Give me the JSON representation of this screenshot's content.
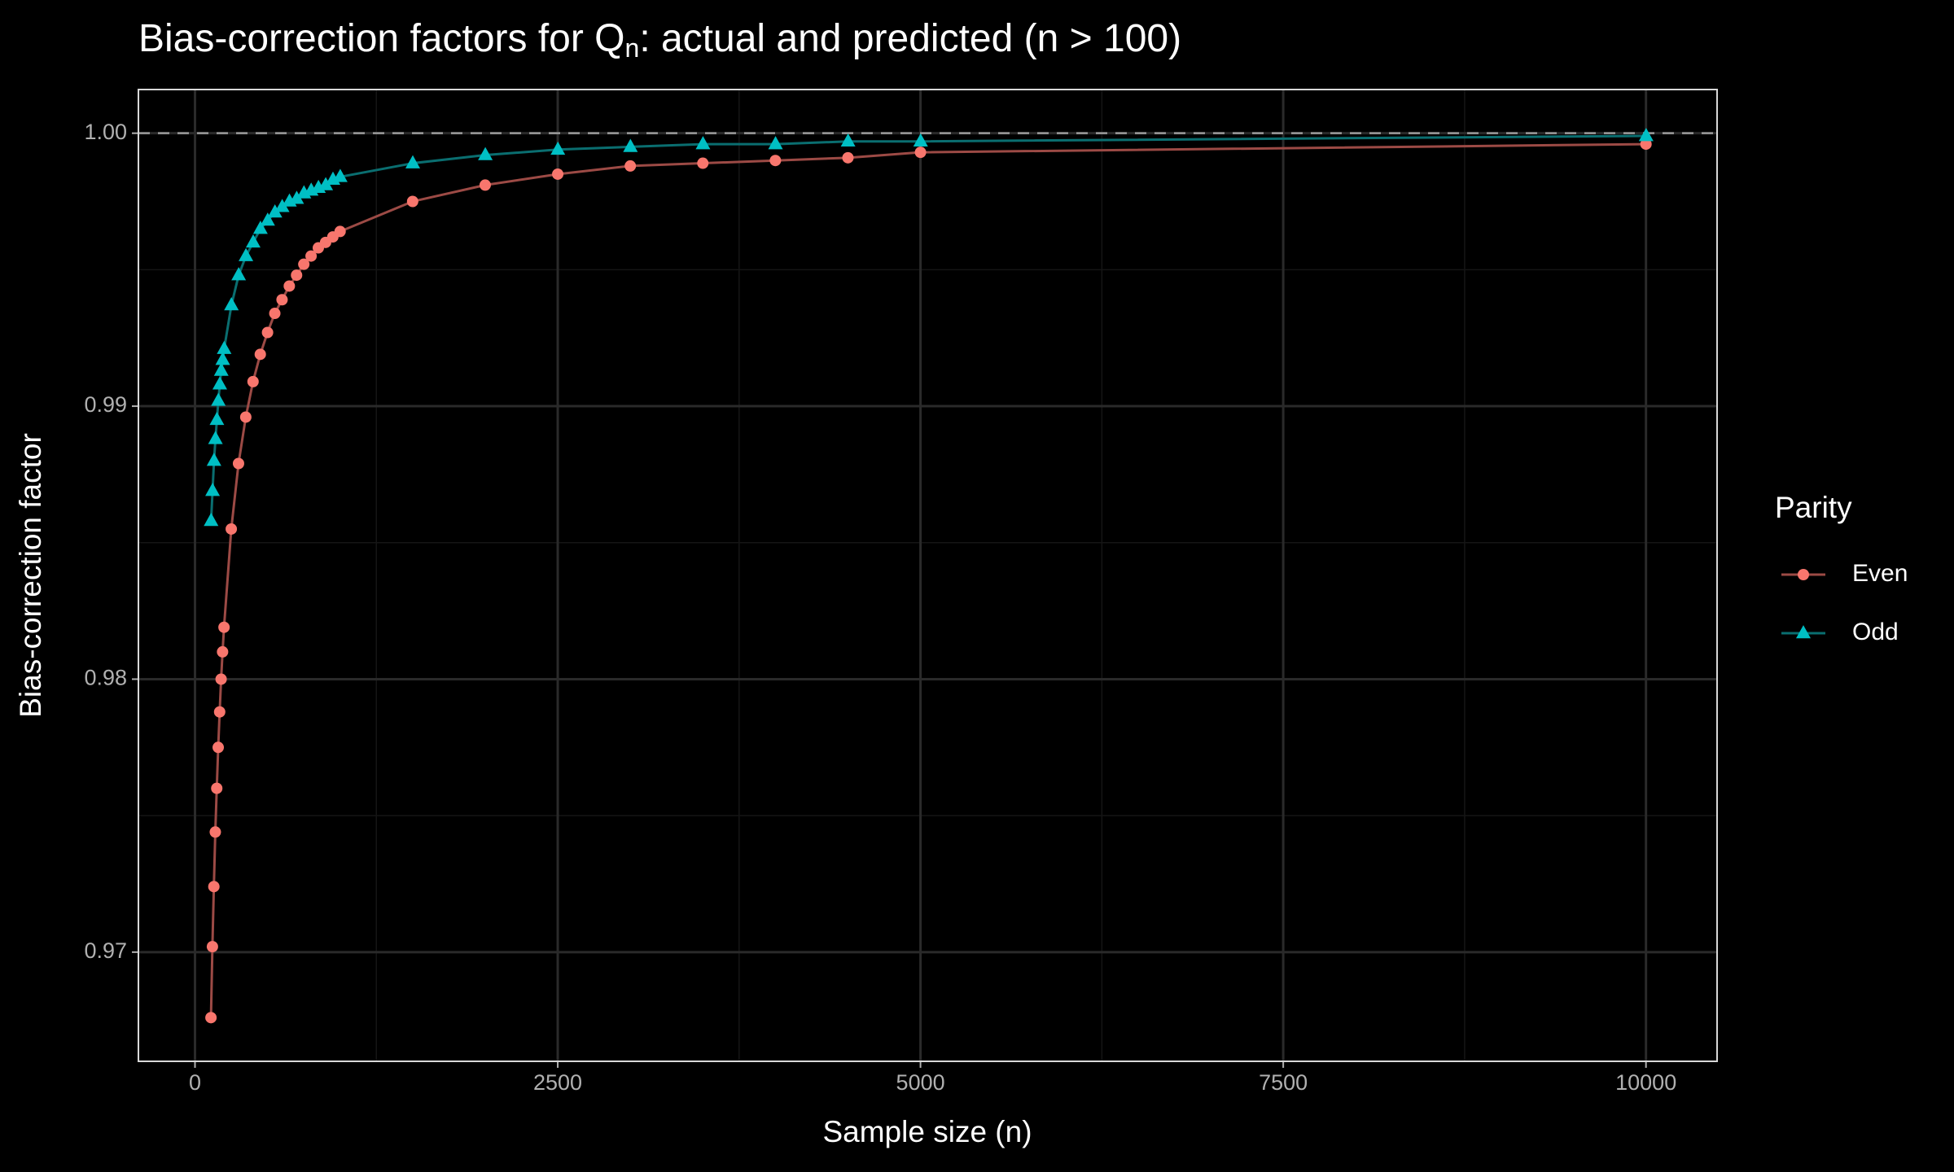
{
  "chart_data": {
    "type": "line",
    "title": {
      "before": "Bias-correction factors for Q",
      "subscript": "n",
      "after": ": actual and predicted (n > 100)"
    },
    "x_label": "Sample size (n)",
    "y_label": "Bias-correction factor",
    "legend_title": "Parity",
    "legend_position": "right",
    "grid": true,
    "xlim": [
      -390,
      10490
    ],
    "ylim": [
      0.966,
      1.0016
    ],
    "xticks": [
      0,
      2500,
      5000,
      7500,
      10000
    ],
    "yticks": [
      0.97,
      0.98,
      0.99,
      {
        "value": 1,
        "label": "1.00"
      }
    ],
    "xminor": [
      1250,
      3750,
      6250,
      8750
    ],
    "yminor": [
      0.975,
      0.985,
      0.995
    ],
    "reference_line": 1,
    "series": [
      {
        "name": "Even",
        "color": "#F8766D",
        "line_color": "#9c4a45",
        "marker": "circle",
        "x": [
          110,
          120,
          130,
          140,
          150,
          160,
          170,
          180,
          190,
          200,
          250,
          300,
          350,
          400,
          450,
          500,
          550,
          600,
          650,
          700,
          750,
          800,
          850,
          900,
          950,
          1000,
          1500,
          2000,
          2500,
          3000,
          3500,
          4000,
          4500,
          5000,
          10000
        ],
        "values": [
          0.9676,
          0.9702,
          0.9724,
          0.9744,
          0.976,
          0.9775,
          0.9788,
          0.98,
          0.981,
          0.9819,
          0.9855,
          0.9879,
          0.9896,
          0.9909,
          0.9919,
          0.9927,
          0.9934,
          0.9939,
          0.9944,
          0.9948,
          0.9952,
          0.9955,
          0.9958,
          0.996,
          0.9962,
          0.9964,
          0.9975,
          0.9981,
          0.9985,
          0.9988,
          0.9989,
          0.999,
          0.9991,
          0.9993,
          0.9996
        ]
      },
      {
        "name": "Odd",
        "color": "#00BFC4",
        "line_color": "#0a6e70",
        "marker": "triangle",
        "x": [
          111,
          121,
          131,
          141,
          151,
          161,
          171,
          181,
          191,
          201,
          251,
          301,
          351,
          401,
          451,
          501,
          551,
          601,
          651,
          701,
          751,
          801,
          851,
          901,
          951,
          1001,
          1501,
          2001,
          2501,
          3001,
          3501,
          4001,
          4501,
          5001,
          10001
        ],
        "values": [
          0.9858,
          0.9869,
          0.988,
          0.9888,
          0.9895,
          0.9902,
          0.9908,
          0.9913,
          0.9917,
          0.9921,
          0.9937,
          0.9948,
          0.9955,
          0.996,
          0.9965,
          0.9968,
          0.9971,
          0.9973,
          0.9975,
          0.9976,
          0.9978,
          0.9979,
          0.998,
          0.9981,
          0.9983,
          0.9984,
          0.9989,
          0.9992,
          0.9994,
          0.9995,
          0.9996,
          0.9996,
          0.9997,
          0.9997,
          0.9999
        ]
      }
    ]
  }
}
